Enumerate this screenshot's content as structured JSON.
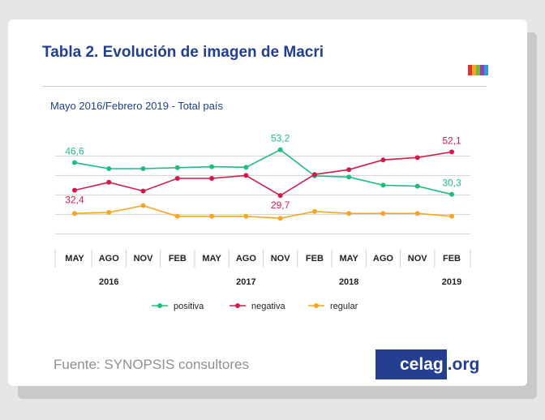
{
  "title": "Tabla 2. Evolución de imagen de Macri",
  "subtitle": "Mayo 2016/Febrero 2019 - Total país",
  "source": "Fuente: SYNOPSIS consultores",
  "brand": {
    "main": "celag",
    "tld": ".org",
    "color": "#243f8f"
  },
  "logo_colors": [
    "#e5322d",
    "#f5a623",
    "#7cb342",
    "#8e44ad",
    "#3498db"
  ],
  "chart_data": {
    "type": "line",
    "title": "Tabla 2. Evolución de imagen de Macri",
    "subtitle": "Mayo 2016/Febrero 2019 - Total país",
    "categories": [
      "MAY",
      "AGO",
      "NOV",
      "FEB",
      "MAY",
      "AGO",
      "NOV",
      "FEB",
      "MAY",
      "AGO",
      "NOV",
      "FEB"
    ],
    "years": [
      {
        "label": "2016",
        "category_index": 1
      },
      {
        "label": "2017",
        "category_index": 5
      },
      {
        "label": "2018",
        "category_index": 8
      },
      {
        "label": "2019",
        "category_index": 11
      }
    ],
    "series": [
      {
        "name": "positiva",
        "color": "#1ebd7e",
        "values": [
          46.6,
          43.5,
          43.5,
          44.0,
          44.5,
          44.2,
          53.2,
          39.8,
          39.2,
          35.0,
          34.5,
          30.3
        ]
      },
      {
        "name": "negativa",
        "color": "#d41a4a",
        "values": [
          32.4,
          36.5,
          32.0,
          38.5,
          38.5,
          40.0,
          29.7,
          40.5,
          43.0,
          48.0,
          49.2,
          52.1
        ]
      },
      {
        "name": "regular",
        "color": "#f5a623",
        "values": [
          20.5,
          21.0,
          24.5,
          19.0,
          19.0,
          19.0,
          18.0,
          21.5,
          20.5,
          20.5,
          20.5,
          19.0
        ]
      }
    ],
    "data_labels": [
      {
        "series": 0,
        "index": 0,
        "text": "46,6"
      },
      {
        "series": 1,
        "index": 0,
        "text": "32,4"
      },
      {
        "series": 0,
        "index": 6,
        "text": "53,2"
      },
      {
        "series": 1,
        "index": 6,
        "text": "29,7"
      },
      {
        "series": 1,
        "index": 11,
        "text": "52,1"
      },
      {
        "series": 0,
        "index": 11,
        "text": "30,3"
      }
    ],
    "grid": true,
    "legend": "bottom",
    "ylim": [
      10,
      60
    ]
  }
}
